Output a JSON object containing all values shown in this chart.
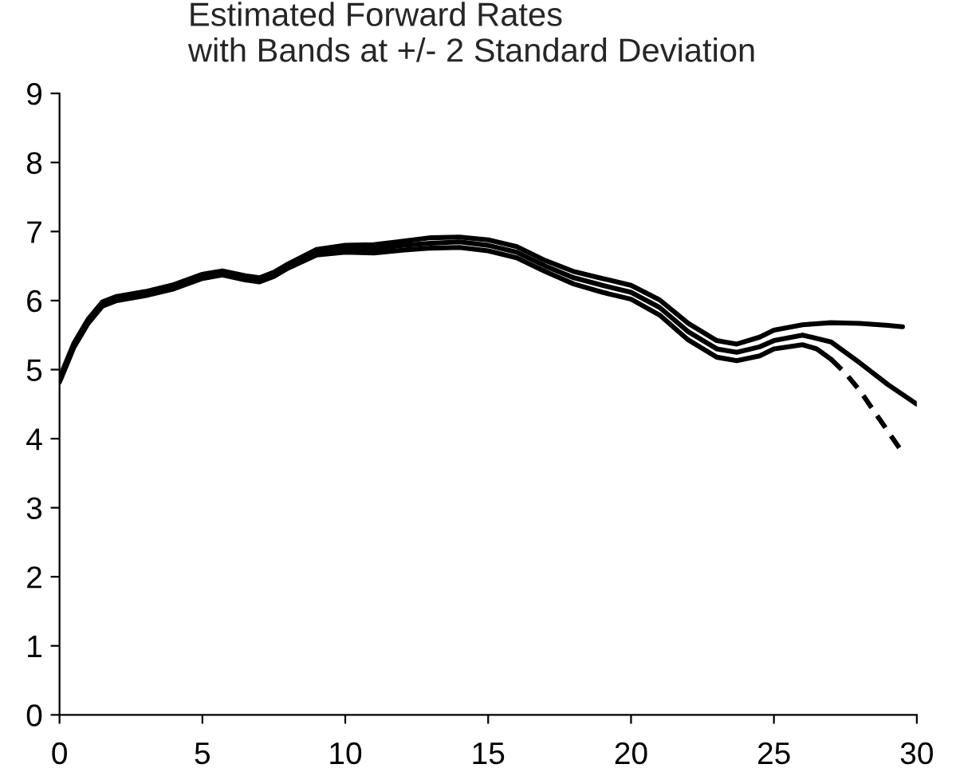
{
  "chart_data": {
    "type": "line",
    "title": "Estimated Forward Rates\nwith Bands at +/- 2 Standard Deviation",
    "xlim": [
      0,
      30
    ],
    "xticks": [
      0,
      5,
      10,
      15,
      20,
      25,
      30
    ],
    "ylim": [
      0,
      9
    ],
    "yticks": [
      0,
      1,
      2,
      3,
      4,
      5,
      6,
      7,
      8,
      9
    ],
    "grid": false,
    "legend": false,
    "marker": "none",
    "series": [
      {
        "color": "#000000",
        "line_style": "solid",
        "x": [
          0,
          0.5,
          1,
          1.5,
          2,
          3,
          4,
          5,
          5.7,
          6.5,
          7,
          7.5,
          8,
          9,
          10,
          11,
          12,
          13,
          14,
          15,
          16,
          17,
          18,
          19,
          20,
          21,
          22,
          23,
          23.7,
          24.5,
          25,
          26,
          27,
          28,
          29,
          29.5
        ],
        "values": [
          4.88,
          5.38,
          5.73,
          5.98,
          6.06,
          6.13,
          6.23,
          6.38,
          6.43,
          6.36,
          6.33,
          6.41,
          6.53,
          6.74,
          6.8,
          6.81,
          6.86,
          6.91,
          6.92,
          6.88,
          6.78,
          6.58,
          6.42,
          6.32,
          6.22,
          6.01,
          5.67,
          5.42,
          5.37,
          5.47,
          5.57,
          5.65,
          5.68,
          5.67,
          5.64,
          5.62
        ]
      },
      {
        "color": "#000000",
        "line_style": "solid",
        "x": [
          0,
          0.5,
          1,
          1.5,
          2,
          3,
          4,
          5,
          5.7,
          6.5,
          7,
          7.5,
          8,
          9,
          10,
          11,
          12,
          13,
          14,
          15,
          16,
          17,
          18,
          19,
          20,
          21,
          22,
          23,
          23.7,
          24.5,
          25,
          26,
          27,
          28,
          29,
          30
        ],
        "values": [
          4.85,
          5.35,
          5.7,
          5.95,
          6.03,
          6.1,
          6.2,
          6.35,
          6.4,
          6.33,
          6.3,
          6.38,
          6.5,
          6.7,
          6.75,
          6.75,
          6.8,
          6.83,
          6.85,
          6.8,
          6.7,
          6.5,
          6.33,
          6.22,
          6.12,
          5.9,
          5.55,
          5.3,
          5.25,
          5.33,
          5.42,
          5.5,
          5.4,
          5.1,
          4.78,
          4.5
        ]
      },
      {
        "color": "#000000",
        "line_style": "solid",
        "x": [
          0,
          0.5,
          1,
          1.5,
          2,
          3,
          4,
          5,
          5.7,
          6.5,
          7,
          7.5,
          8,
          9,
          10,
          11,
          12,
          13,
          14,
          15,
          16,
          17,
          18,
          19,
          20,
          21,
          22,
          23,
          23.7,
          24.5,
          25,
          26,
          26.5,
          27
        ],
        "values": [
          4.82,
          5.32,
          5.67,
          5.92,
          6.0,
          6.07,
          6.17,
          6.32,
          6.37,
          6.3,
          6.27,
          6.35,
          6.47,
          6.66,
          6.7,
          6.69,
          6.73,
          6.76,
          6.77,
          6.72,
          6.62,
          6.42,
          6.24,
          6.12,
          6.02,
          5.79,
          5.43,
          5.18,
          5.13,
          5.2,
          5.3,
          5.36,
          5.3,
          5.15
        ]
      },
      {
        "color": "#000000",
        "line_style": "dashed",
        "x": [
          27,
          27.5,
          28,
          28.5,
          29,
          29.5
        ],
        "values": [
          5.15,
          4.95,
          4.7,
          4.4,
          4.1,
          3.8
        ]
      }
    ]
  }
}
